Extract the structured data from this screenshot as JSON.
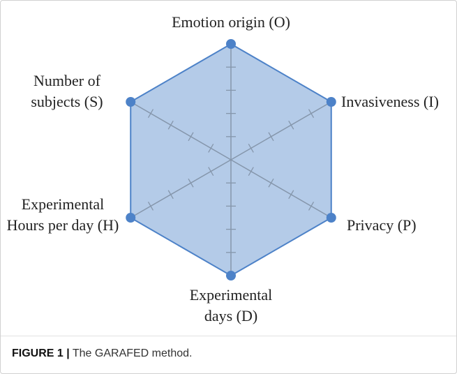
{
  "chart_data": {
    "type": "radar",
    "categories": [
      "Emotion origin (O)",
      "Invasiveness (I)",
      "Privacy (P)",
      "Experimental days (D)",
      "Experimental Hours per day (H)",
      "Number of subjects (S)"
    ],
    "values": [
      5,
      5,
      5,
      5,
      5,
      5
    ],
    "color": "#4d82c8",
    "rlim": [
      0,
      5
    ],
    "rticks": [
      1,
      2,
      3,
      4,
      5
    ]
  },
  "caption": {
    "label": "FIGURE 1 |",
    "text": "The GARAFED method."
  }
}
